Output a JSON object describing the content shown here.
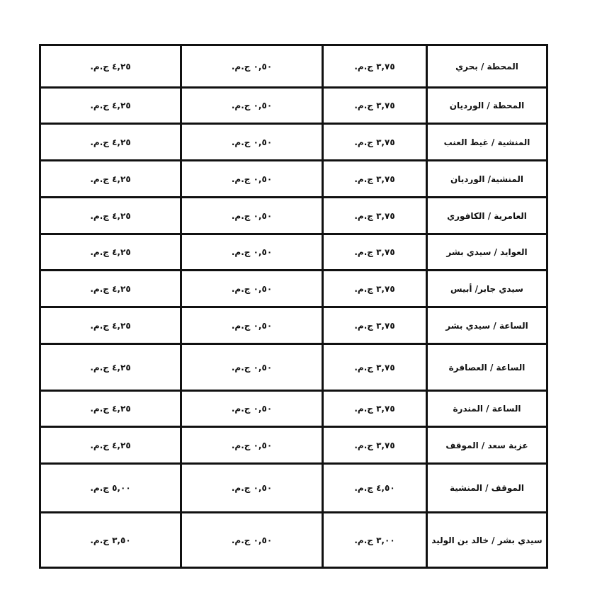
{
  "rows": [
    {
      "route": "المحطة / بحري",
      "fare": "٣,٧٥ ج.م.",
      "extra": "٠,٥٠ ج.م.",
      "total": "٤,٢٥ ج.م."
    },
    {
      "route": "المحطة / الورديان",
      "fare": "٣,٧٥ ج.م.",
      "extra": "٠,٥٠ ج.م.",
      "total": "٤,٢٥ ج.م."
    },
    {
      "route": "المنشية / غيط العنب",
      "fare": "٣,٧٥ ج.م.",
      "extra": "٠,٥٠ ج.م.",
      "total": "٤,٢٥ ج.م."
    },
    {
      "route": "المنشية/ الورديان",
      "fare": "٣,٧٥ ج.م.",
      "extra": "٠,٥٠ ج.م.",
      "total": "٤,٢٥ ج.م."
    },
    {
      "route": "العامرية / الكافوري",
      "fare": "٣,٧٥ ج.م.",
      "extra": "٠,٥٠ ج.م.",
      "total": "٤,٢٥ ج.م."
    },
    {
      "route": "العوايد / سيدي بشر",
      "fare": "٣,٧٥ ج.م.",
      "extra": "٠,٥٠ ج.م.",
      "total": "٤,٢٥ ج.م."
    },
    {
      "route": "سيدي جابر/ أبيس",
      "fare": "٣,٧٥ ج.م.",
      "extra": "٠,٥٠ ج.م.",
      "total": "٤,٢٥ ج.م."
    },
    {
      "route": "الساعة / سيدي بشر",
      "fare": "٣,٧٥ ج.م.",
      "extra": "٠,٥٠ ج.م.",
      "total": "٤,٢٥ ج.م."
    },
    {
      "route": "الساعة / العصافرة",
      "fare": "٣,٧٥ ج.م.",
      "extra": "٠,٥٠ ج.م.",
      "total": "٤,٢٥ ج.م."
    },
    {
      "route": "الساعة / المندرة",
      "fare": "٣,٧٥ ج.م.",
      "extra": "٠,٥٠ ج.م.",
      "total": "٤,٢٥ ج.م."
    },
    {
      "route": "عزبة سعد / الموقف",
      "fare": "٣,٧٥ ج.م.",
      "extra": "٠,٥٠ ج.م.",
      "total": "٤,٢٥ ج.م."
    },
    {
      "route": "الموقف / المنشية",
      "fare": "٤,٥٠ ج.م.",
      "extra": "٠,٥٠ ج.م.",
      "total": "٥,٠٠ ج.م."
    },
    {
      "route": "سيدي بشر / خالد بن الوليد",
      "fare": "٣,٠٠ ج.م.",
      "extra": "٠,٥٠ ج.م.",
      "total": "٣,٥٠ ج.م."
    }
  ]
}
